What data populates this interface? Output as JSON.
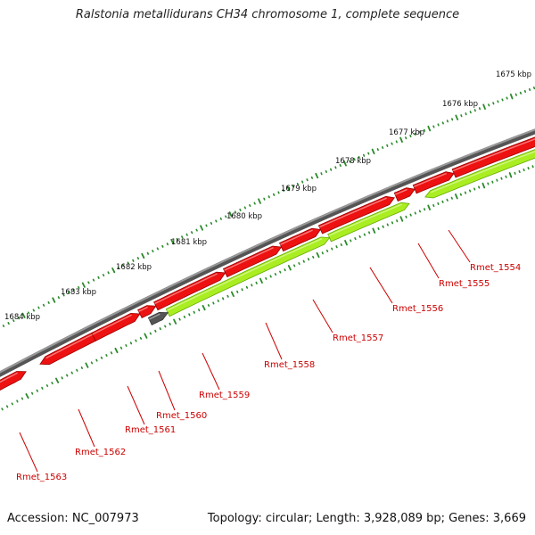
{
  "title": "Ralstonia metallidurans CH34 chromosome 1, complete sequence",
  "footer": {
    "accession": "Accession: NC_007973",
    "summary": "Topology: circular; Length: 3,928,089 bp; Genes: 3,669"
  },
  "colors": {
    "backbone": "#7a7a7a",
    "forward_gene": "#ee1111",
    "reverse_gene": "#aaee22",
    "pseudo_gene": "#555555",
    "tick": "#2a8a2a",
    "label": "#cc0000"
  },
  "ruler_labels": [
    "1675 kbp",
    "1676 kbp",
    "1677 kbp",
    "1678 kbp",
    "1679 kbp",
    "1680 kbp",
    "1681 kbp",
    "1682 kbp",
    "1683 kbp",
    "1684 kbp"
  ],
  "gene_labels": [
    "Rmet_1554",
    "Rmet_1555",
    "Rmet_1556",
    "Rmet_1557",
    "Rmet_1558",
    "Rmet_1559",
    "Rmet_1560",
    "Rmet_1561",
    "Rmet_1562",
    "Rmet_1563"
  ]
}
